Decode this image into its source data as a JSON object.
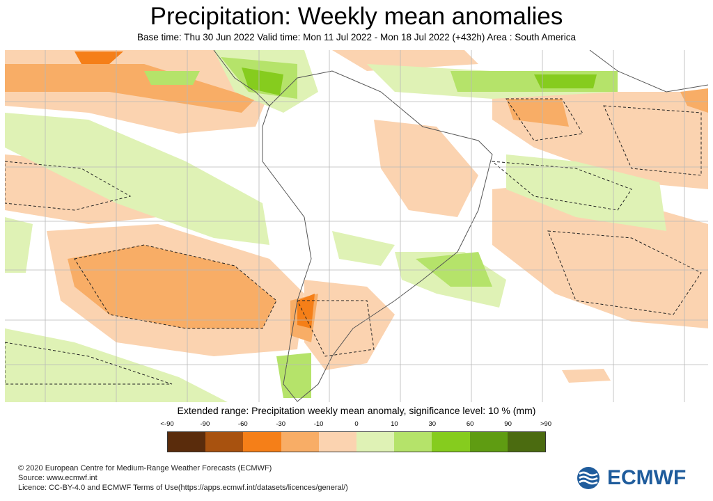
{
  "header": {
    "title": "Precipitation: Weekly mean anomalies",
    "subtitle": "Base time: Thu 30 Jun 2022 Valid time: Mon 11 Jul 2022 - Mon 18 Jul 2022 (+432h) Area : South America"
  },
  "legend": {
    "title": "Extended range: Precipitation weekly mean anomaly, significance level: 10 % (mm)",
    "ticks": [
      "<-90",
      "-90",
      "-60",
      "-30",
      "-10",
      "0",
      "10",
      "30",
      "60",
      "90",
      ">90"
    ],
    "colors": [
      "#5a2c0c",
      "#a8520f",
      "#f57f18",
      "#f8ad66",
      "#fbd3b0",
      "#dff2b5",
      "#b5e36a",
      "#86cc1e",
      "#5f9c12",
      "#4b6b10"
    ]
  },
  "footer": {
    "copyright": "© 2020 European Centre for Medium-Range Weather Forecasts (ECMWF)",
    "source": "Source: www.ecmwf.int",
    "licence": "Licence: CC-BY-4.0 and ECMWF Terms of Use(https://apps.ecmwf.int/datasets/licences/general/)"
  },
  "logo": {
    "text": "ECMWF",
    "color": "#1f5c9c"
  }
}
